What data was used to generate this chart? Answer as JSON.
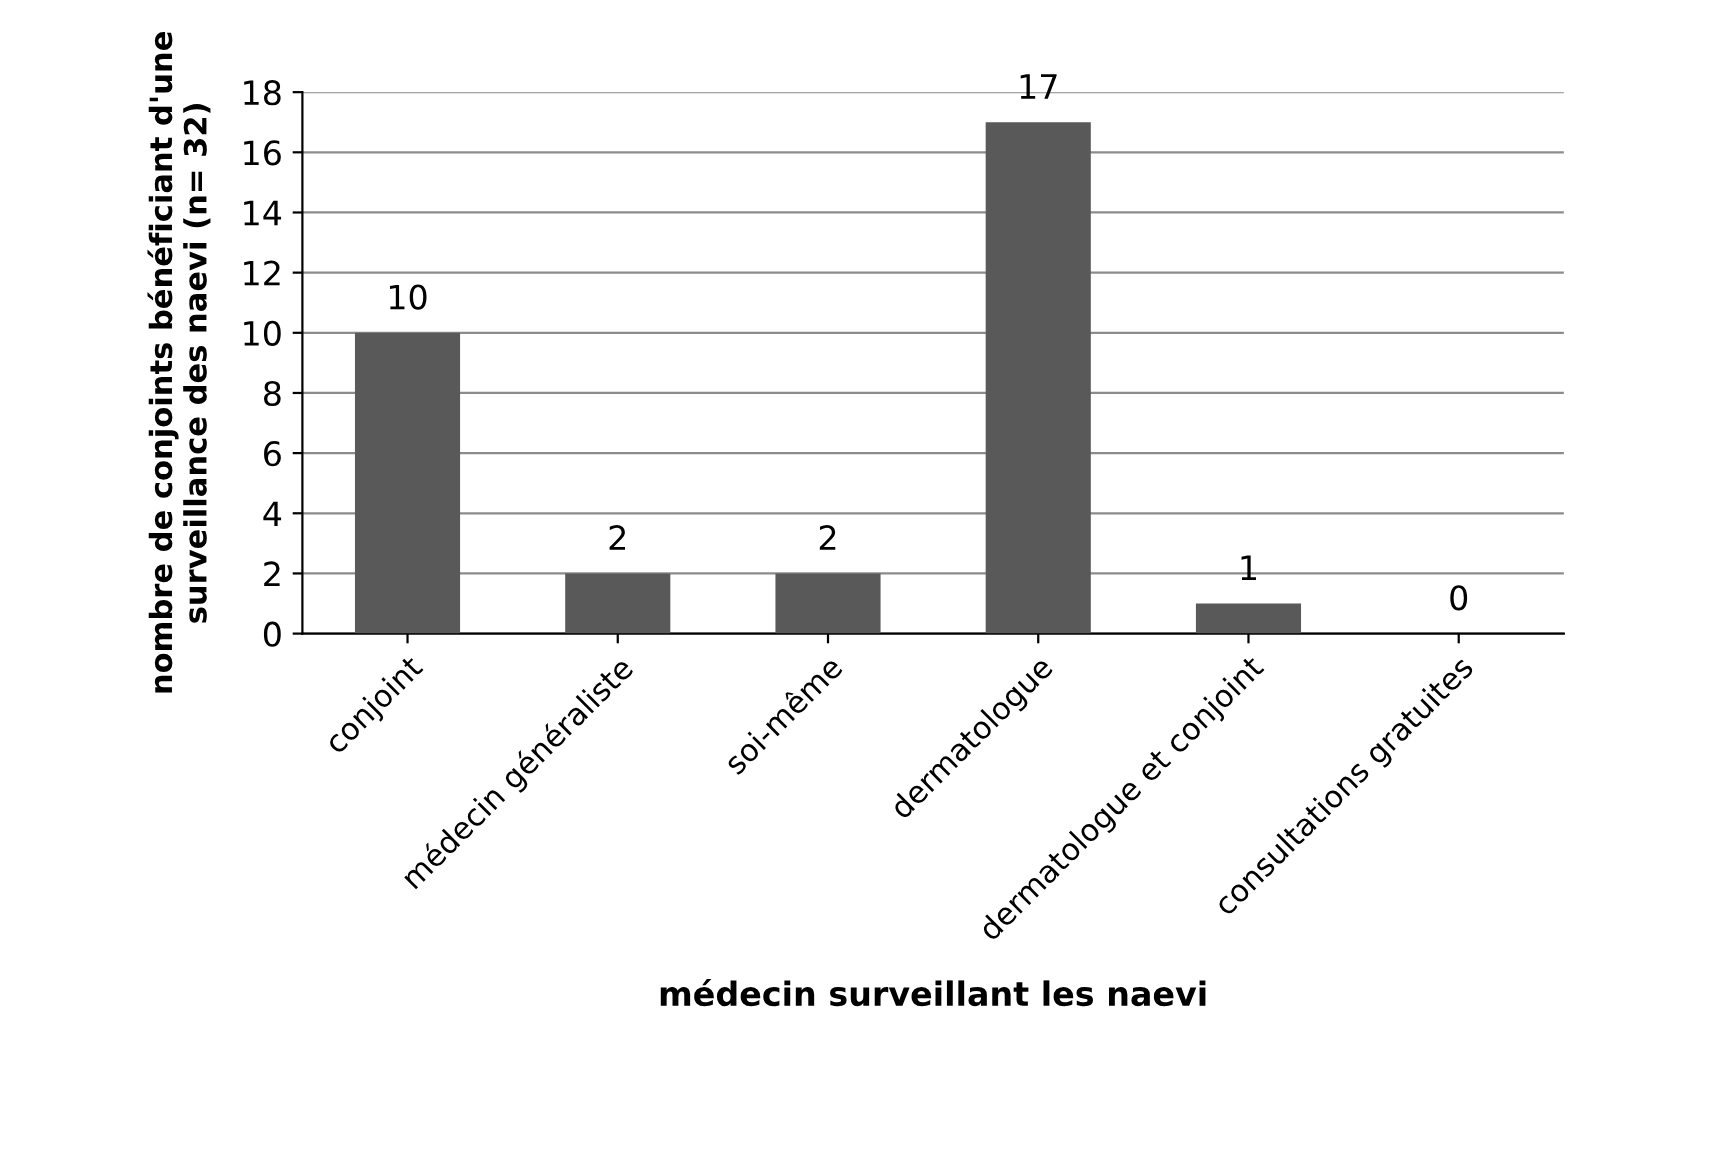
{
  "chart_data": {
    "type": "bar",
    "categories": [
      "conjoint",
      "médecin généraliste",
      "soi-même",
      "dermatologue",
      "dermatologue et conjoint",
      "consultations gratuites"
    ],
    "values": [
      10,
      2,
      2,
      17,
      1,
      0
    ],
    "color": "#595959",
    "xlabel": "médecin surveillant les naevi",
    "ylabel": "nombre de conjoints bénéficiant d'une\nsurveillance des naevi (n= 32)",
    "ylim": [
      0,
      18
    ],
    "yticks": [
      0,
      2,
      4,
      6,
      8,
      10,
      12,
      14,
      16,
      18
    ],
    "grid": "y",
    "data_labels": true
  }
}
